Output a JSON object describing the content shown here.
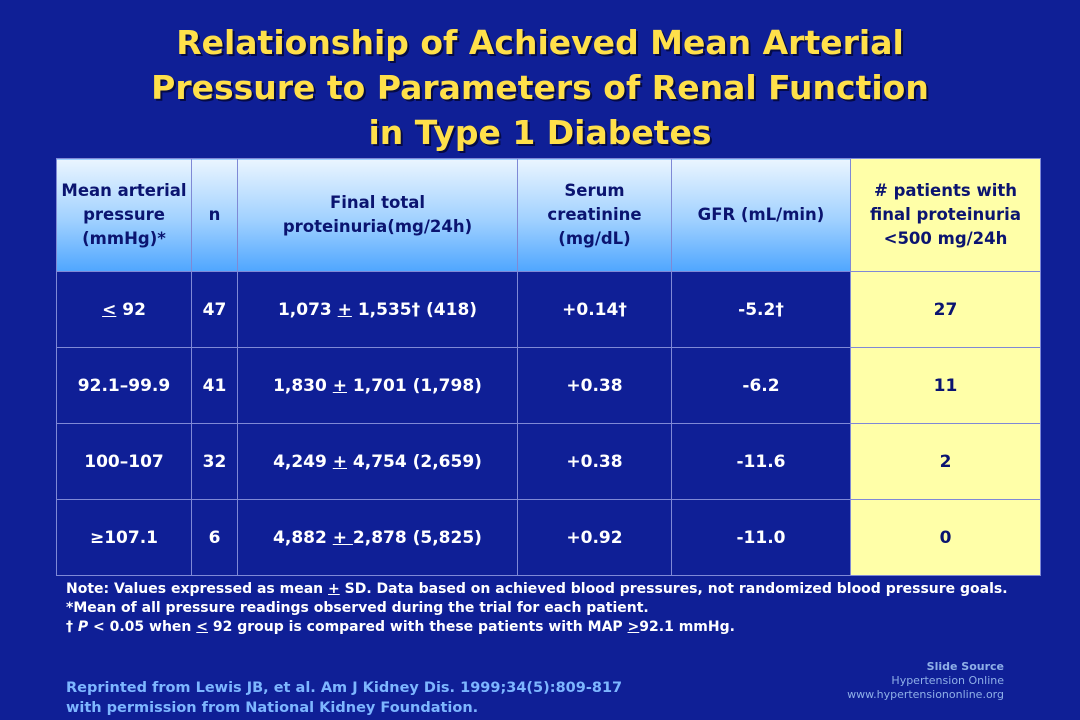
{
  "title": [
    "Relationship of Achieved Mean Arterial",
    "Pressure to Parameters of Renal Function",
    "in Type 1 Diabetes"
  ],
  "table": {
    "headers": [
      "Mean arterial pressure (mmHg)*",
      "n",
      "Final total proteinuria(mg/24h)",
      "Serum creatinine (mg/dL)",
      "GFR (mL/min)",
      "# patients with final proteinuria <500 mg/24h"
    ],
    "rows": [
      {
        "map_sign": "<",
        "map_value": " 92",
        "n": "47",
        "prot_a": "1,073 ",
        "prot_pm": "+",
        "prot_b": " 1,535† (418)",
        "creat": "+0.14†",
        "gfr": "-5.2†",
        "patients": "27"
      },
      {
        "map_sign": "",
        "map_value": "92.1–99.9",
        "n": "41",
        "prot_a": "1,830 ",
        "prot_pm": "+",
        "prot_b": " 1,701 (1,798)",
        "creat": "+0.38",
        "gfr": "-6.2",
        "patients": "11"
      },
      {
        "map_sign": "",
        "map_value": "100–107",
        "n": "32",
        "prot_a": "4,249 ",
        "prot_pm": "+",
        "prot_b": " 4,754 (2,659)",
        "creat": "+0.38",
        "gfr": "-11.6",
        "patients": "2"
      },
      {
        "map_sign": "",
        "map_value": "≥107.1",
        "n": "6",
        "prot_a": "4,882 ",
        "prot_pm": "+ ",
        "prot_b": "2,878 (5,825)",
        "creat": "+0.92",
        "gfr": "-11.0",
        "patients": "0"
      }
    ]
  },
  "notes": {
    "line1_a": "Note: Values expressed as mean ",
    "line1_pm": "+",
    "line1_b": " SD. Data based on achieved blood pressures, not randomized blood pressure goals.",
    "line2": "*Mean of all pressure readings observed during the trial for each patient.",
    "line3_dagger": "† ",
    "line3_p": "P",
    "line3_a": " < 0.05 when ",
    "line3_le": "<",
    "line3_b": " 92 group is compared with these patients with MAP ",
    "line3_ge": ">",
    "line3_c": "92.1 mmHg."
  },
  "reprint": {
    "line1": "Reprinted from Lewis JB, et al. Am J Kidney Dis. 1999;34(5):809-817",
    "line2": "with permission from National Kidney Foundation."
  },
  "source": {
    "heading": "Slide Source",
    "name": "Hypertension Online",
    "url": "www.hypertensiononline.org"
  },
  "colors": {
    "background": "#0f1f96",
    "title": "#ffe04a",
    "highlight_column": "#ffffa8",
    "reprint_text": "#7db6ff"
  }
}
